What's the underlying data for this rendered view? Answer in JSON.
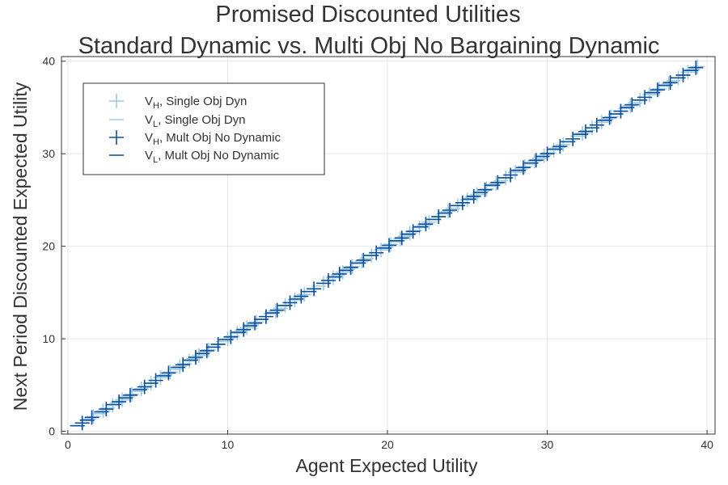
{
  "chart_data": {
    "type": "scatter",
    "title_lines": [
      "Promised Discounted Utilities",
      "Standard Dynamic vs. Multi Obj No Bargaining Dynamic"
    ],
    "xlabel": "Agent Expected Utility",
    "ylabel": "Next Period Discounted Expected Utility",
    "xlim": [
      -0.4,
      40.5
    ],
    "ylim": [
      -0.3,
      40.5
    ],
    "xticks": [
      0,
      10,
      20,
      30,
      40
    ],
    "yticks": [
      0,
      10,
      20,
      30,
      40
    ],
    "grid": true,
    "legend_position": "top-left",
    "series": [
      {
        "name": "V_H, Single Obj Dyn",
        "legend_main": "V",
        "legend_sub": "H",
        "legend_rest": ", Single Obj Dyn",
        "marker": "plus",
        "color": "#9ecae1",
        "x": [
          0.9,
          1.6,
          2.2,
          2.8,
          3.4,
          4.0,
          4.6,
          5.2,
          5.8,
          6.4,
          7.0,
          7.6,
          8.2,
          8.8,
          9.4,
          10.0,
          10.6,
          11.2,
          11.8,
          12.4,
          13.0,
          13.6,
          14.2,
          14.8,
          15.4,
          16.0,
          16.6,
          17.2,
          17.8,
          18.4,
          19.0,
          19.6,
          20.2,
          20.8,
          21.4,
          22.0,
          22.6,
          23.2,
          23.8,
          24.4,
          25.0,
          25.6,
          26.2,
          26.8,
          27.4,
          28.0,
          28.6,
          29.2,
          29.8,
          30.4,
          31.0,
          31.6,
          32.2,
          32.8,
          33.4,
          34.0,
          34.6,
          35.2,
          35.8,
          36.4,
          37.0,
          37.6,
          38.2,
          38.8,
          39.4
        ],
        "y": [
          0.9,
          1.6,
          2.2,
          2.8,
          3.4,
          4.0,
          4.6,
          5.2,
          5.8,
          6.4,
          7.0,
          7.6,
          8.2,
          8.8,
          9.4,
          10.0,
          10.6,
          11.2,
          11.8,
          12.4,
          13.0,
          13.6,
          14.2,
          14.8,
          15.4,
          16.0,
          16.6,
          17.2,
          17.8,
          18.4,
          19.0,
          19.6,
          20.2,
          20.8,
          21.4,
          22.0,
          22.6,
          23.2,
          23.8,
          24.4,
          25.0,
          25.6,
          26.2,
          26.8,
          27.4,
          28.0,
          28.6,
          29.2,
          29.8,
          30.4,
          31.0,
          31.6,
          32.2,
          32.8,
          33.4,
          34.0,
          34.6,
          35.2,
          35.8,
          36.4,
          37.0,
          37.6,
          38.2,
          38.8,
          39.4
        ]
      },
      {
        "name": "V_L, Single Obj Dyn",
        "legend_main": "V",
        "legend_sub": "L",
        "legend_rest": ", Single Obj Dyn",
        "marker": "hline",
        "color": "#9ecae1",
        "x": [
          0.6,
          1.3,
          1.9,
          2.5,
          3.1,
          3.7,
          4.3,
          4.9,
          5.5,
          6.1,
          6.7,
          7.3,
          7.9,
          8.5,
          9.1,
          9.7,
          10.3,
          10.9,
          11.5,
          12.1,
          12.7,
          13.3,
          13.9,
          14.5,
          15.1,
          15.7,
          16.3,
          16.9,
          17.5,
          18.1,
          18.7,
          19.3,
          19.9,
          20.5,
          21.1,
          21.7,
          22.3,
          22.9,
          23.5,
          24.1,
          24.7,
          25.3,
          25.9,
          26.5,
          27.1,
          27.7,
          28.3,
          28.9,
          29.5,
          30.1,
          30.7,
          31.3,
          31.9,
          32.5,
          33.1,
          33.7,
          34.3,
          34.9,
          35.5,
          36.1,
          36.7,
          37.3,
          37.9,
          38.5,
          39.1
        ],
        "y": [
          0.6,
          1.3,
          1.9,
          2.5,
          3.1,
          3.7,
          4.3,
          4.9,
          5.5,
          6.1,
          6.7,
          7.3,
          7.9,
          8.5,
          9.1,
          9.7,
          10.3,
          10.9,
          11.5,
          12.1,
          12.7,
          13.3,
          13.9,
          14.5,
          15.1,
          15.7,
          16.3,
          16.9,
          17.5,
          18.1,
          18.7,
          19.3,
          19.9,
          20.5,
          21.1,
          21.7,
          22.3,
          22.9,
          23.5,
          24.1,
          24.7,
          25.3,
          25.9,
          26.5,
          27.1,
          27.7,
          28.3,
          28.9,
          29.5,
          30.1,
          30.7,
          31.3,
          31.9,
          32.5,
          33.1,
          33.7,
          34.3,
          34.9,
          35.5,
          36.1,
          36.7,
          37.3,
          37.9,
          38.5,
          39.1
        ]
      },
      {
        "name": "V_H, Mult Obj No Dynamic",
        "legend_main": "V",
        "legend_sub": "H",
        "legend_rest": ", Mult Obj No Dynamic",
        "marker": "plus",
        "color": "#0b4f9c",
        "x": [
          0.9,
          1.5,
          2.4,
          3.2,
          3.9,
          4.8,
          5.5,
          6.3,
          7.2,
          8.0,
          8.7,
          9.4,
          10.2,
          11.0,
          11.7,
          12.4,
          13.1,
          13.9,
          14.6,
          15.4,
          16.3,
          17.0,
          17.7,
          18.5,
          19.3,
          20.1,
          20.9,
          21.6,
          22.4,
          23.2,
          23.9,
          24.7,
          25.4,
          26.1,
          26.9,
          27.7,
          28.5,
          29.3,
          30.0,
          30.8,
          31.6,
          32.4,
          33.1,
          33.9,
          34.6,
          35.3,
          36.1,
          36.9,
          37.7,
          38.5,
          39.3
        ],
        "y": [
          0.9,
          1.5,
          2.4,
          3.2,
          3.9,
          4.8,
          5.5,
          6.3,
          7.2,
          8.0,
          8.7,
          9.4,
          10.2,
          11.0,
          11.7,
          12.4,
          13.1,
          13.9,
          14.6,
          15.4,
          16.3,
          17.0,
          17.7,
          18.5,
          19.3,
          20.1,
          20.9,
          21.6,
          22.4,
          23.2,
          23.9,
          24.7,
          25.4,
          26.1,
          26.9,
          27.7,
          28.5,
          29.3,
          30.0,
          30.8,
          31.6,
          32.4,
          33.1,
          33.9,
          34.6,
          35.3,
          36.1,
          36.9,
          37.7,
          38.5,
          39.3
        ]
      },
      {
        "name": "V_L, Mult Obj No Dynamic",
        "legend_main": "V",
        "legend_sub": "L",
        "legend_rest": ", Mult Obj No Dynamic",
        "marker": "hline",
        "color": "#0b4f9c",
        "x": [
          0.6,
          1.2,
          2.1,
          2.9,
          3.6,
          4.5,
          5.2,
          6.0,
          6.9,
          7.7,
          8.4,
          9.1,
          9.9,
          10.7,
          11.4,
          12.1,
          12.8,
          13.6,
          14.3,
          15.1,
          16.0,
          16.7,
          17.4,
          18.2,
          19.0,
          19.8,
          20.6,
          21.3,
          22.1,
          22.9,
          23.6,
          24.4,
          25.1,
          25.8,
          26.6,
          27.4,
          28.2,
          29.0,
          29.7,
          30.5,
          31.3,
          32.1,
          32.8,
          33.6,
          34.3,
          35.0,
          35.8,
          36.6,
          37.4,
          38.2,
          39.0
        ],
        "y": [
          0.6,
          1.2,
          2.1,
          2.9,
          3.6,
          4.5,
          5.2,
          6.0,
          6.9,
          7.7,
          8.4,
          9.1,
          9.9,
          10.7,
          11.4,
          12.1,
          12.8,
          13.6,
          14.3,
          15.1,
          16.0,
          16.7,
          17.4,
          18.2,
          19.0,
          19.8,
          20.6,
          21.3,
          22.1,
          22.9,
          23.6,
          24.4,
          25.1,
          25.8,
          26.6,
          27.4,
          28.2,
          29.0,
          29.7,
          30.5,
          31.3,
          32.1,
          32.8,
          33.6,
          34.3,
          35.0,
          35.8,
          36.6,
          37.4,
          38.2,
          39.0
        ]
      }
    ]
  }
}
